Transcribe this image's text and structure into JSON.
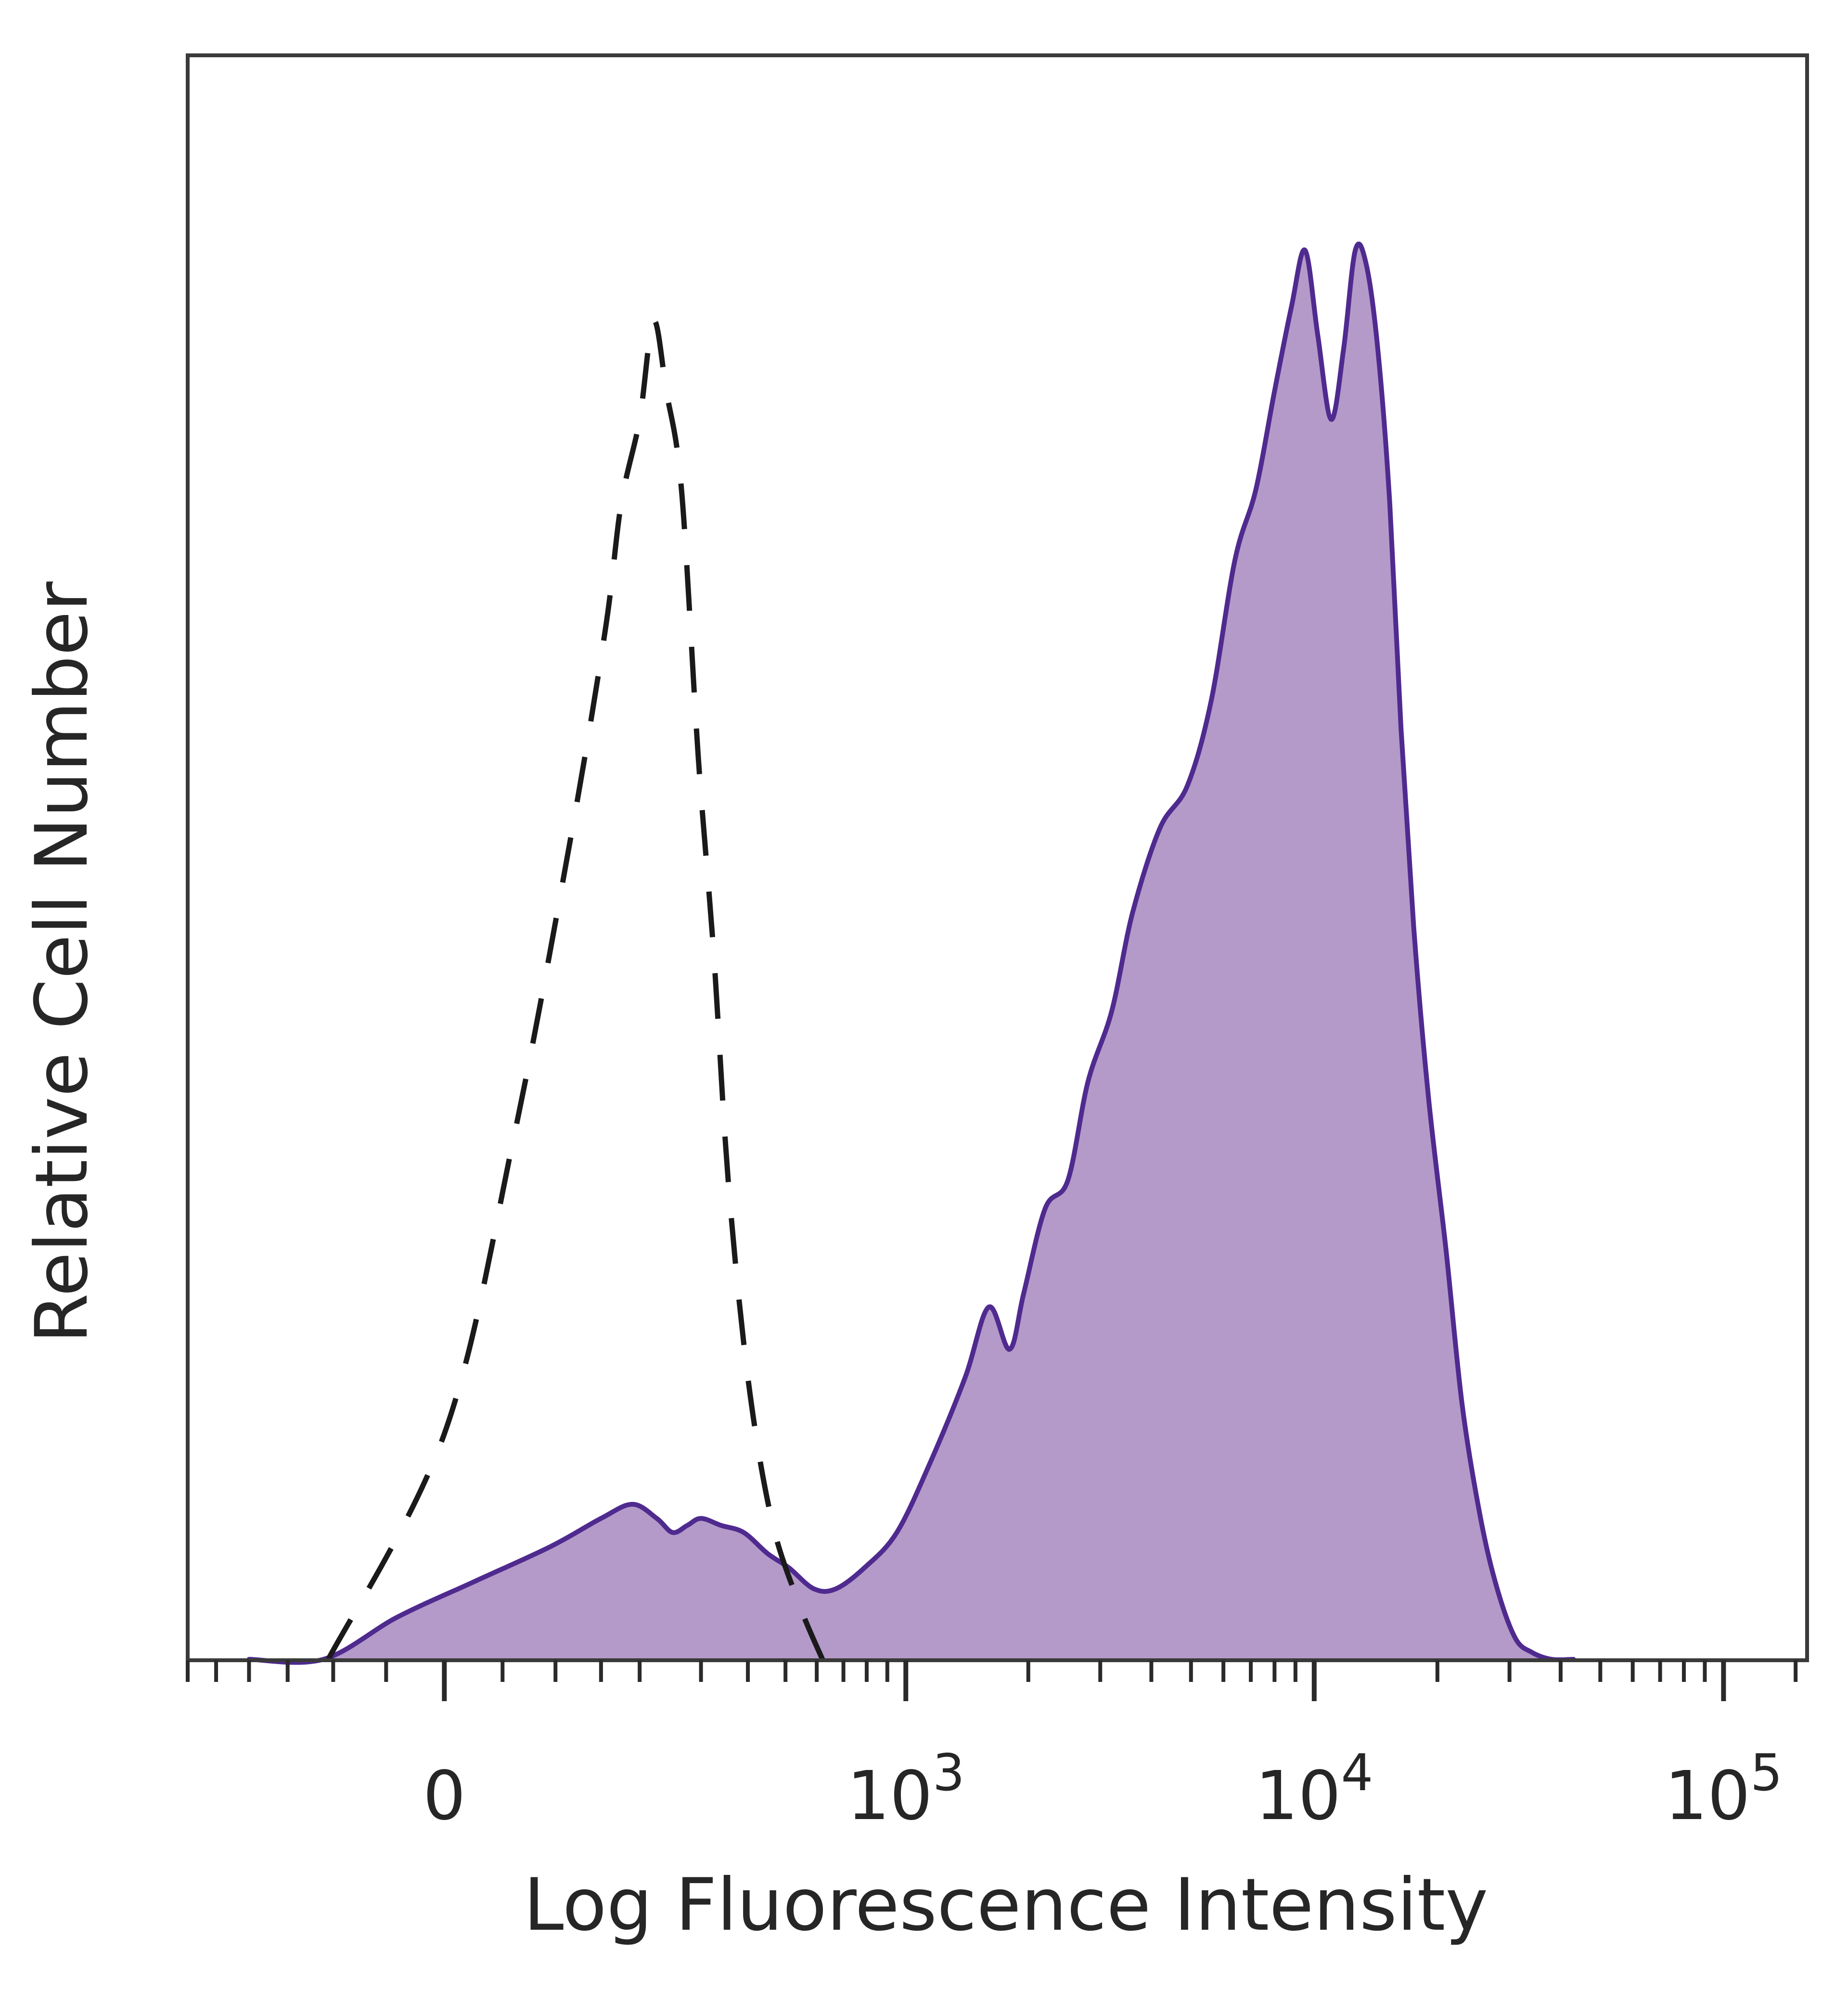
{
  "chart_data": {
    "type": "area",
    "title": "",
    "xlabel": "Log Fluorescence Intensity",
    "ylabel": "Relative Cell Number",
    "x_scale": "biexponential",
    "xlim": [
      -300,
      160000
    ],
    "ylim": [
      0,
      1.0
    ],
    "x_tick_labels": [
      {
        "value": 0,
        "base": "0",
        "exp": ""
      },
      {
        "value": 1000,
        "base": "10",
        "exp": "3"
      },
      {
        "value": 10000,
        "base": "10",
        "exp": "4"
      },
      {
        "value": 100000,
        "base": "10",
        "exp": "5"
      }
    ],
    "grid": false,
    "series": [
      {
        "style": "dashed",
        "color": "#1a1a1a",
        "filled": false,
        "x": [
          -105,
          0,
          60,
          115,
          155,
          175,
          200,
          220,
          240,
          265,
          295,
          325,
          355,
          400,
          460,
          540,
          620
        ],
        "y": [
          0.0,
          0.16,
          0.37,
          0.58,
          0.73,
          0.82,
          0.88,
          0.95,
          0.9,
          0.83,
          0.64,
          0.5,
          0.34,
          0.2,
          0.1,
          0.04,
          0.0
        ]
      },
      {
        "style": "solid",
        "color": "#4f2a8f",
        "fill": "#b49ac8",
        "filled": true,
        "x": [
          -200,
          -110,
          -40,
          25,
          95,
          150,
          190,
          225,
          250,
          275,
          300,
          340,
          390,
          450,
          510,
          590,
          670,
          790,
          950,
          1150,
          1400,
          1600,
          1800,
          1950,
          2200,
          2500,
          2800,
          3200,
          3600,
          4200,
          4900,
          5600,
          6400,
          7200,
          8000,
          8800,
          9500,
          10200,
          11000,
          11800,
          12600,
          13400,
          14300,
          15300,
          16300,
          17500,
          19000,
          21000,
          23000,
          25500,
          28000,
          31000,
          34000,
          38000,
          43000
        ],
        "y": [
          0.0,
          0.0,
          0.03,
          0.055,
          0.08,
          0.1,
          0.11,
          0.1,
          0.09,
          0.095,
          0.1,
          0.095,
          0.09,
          0.075,
          0.065,
          0.05,
          0.05,
          0.065,
          0.09,
          0.14,
          0.2,
          0.25,
          0.22,
          0.26,
          0.32,
          0.34,
          0.41,
          0.46,
          0.53,
          0.59,
          0.62,
          0.68,
          0.78,
          0.83,
          0.9,
          0.96,
          1.0,
          0.94,
          0.88,
          0.93,
          1.0,
          0.99,
          0.93,
          0.82,
          0.66,
          0.52,
          0.4,
          0.29,
          0.18,
          0.1,
          0.05,
          0.015,
          0.005,
          0.0,
          0.0
        ]
      }
    ]
  }
}
